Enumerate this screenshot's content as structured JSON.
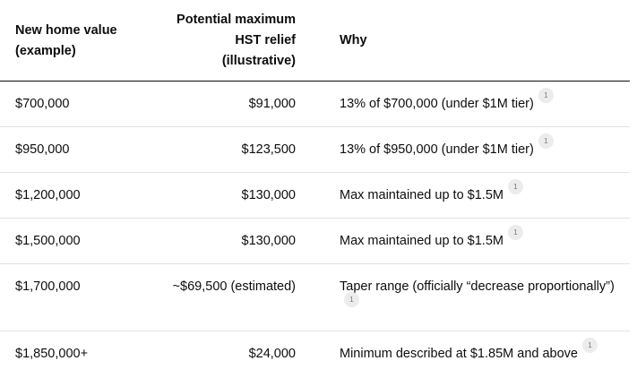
{
  "headers": [
    "New home value (example)",
    "Potential maximum HST relief (illustrative)",
    "Why"
  ],
  "rows": [
    {
      "value": "$700,000",
      "relief": "$91,000",
      "why": "13% of $700,000 (under $1M tier)",
      "cite": "1"
    },
    {
      "value": "$950,000",
      "relief": "$123,500",
      "why": "13% of $950,000 (under $1M tier)",
      "cite": "1"
    },
    {
      "value": "$1,200,000",
      "relief": "$130,000",
      "why": "Max maintained up to $1.5M",
      "cite": "1"
    },
    {
      "value": "$1,500,000",
      "relief": "$130,000",
      "why": "Max maintained up to $1.5M",
      "cite": "1"
    },
    {
      "value": "$1,700,000",
      "relief": "~$69,500 (estimated)",
      "why": "Taper range (officially “decrease proportionally”)",
      "cite": "1"
    },
    {
      "value": "$1,850,000+",
      "relief": "$24,000",
      "why": "Minimum described at $1.85M and above",
      "cite": "1"
    }
  ]
}
